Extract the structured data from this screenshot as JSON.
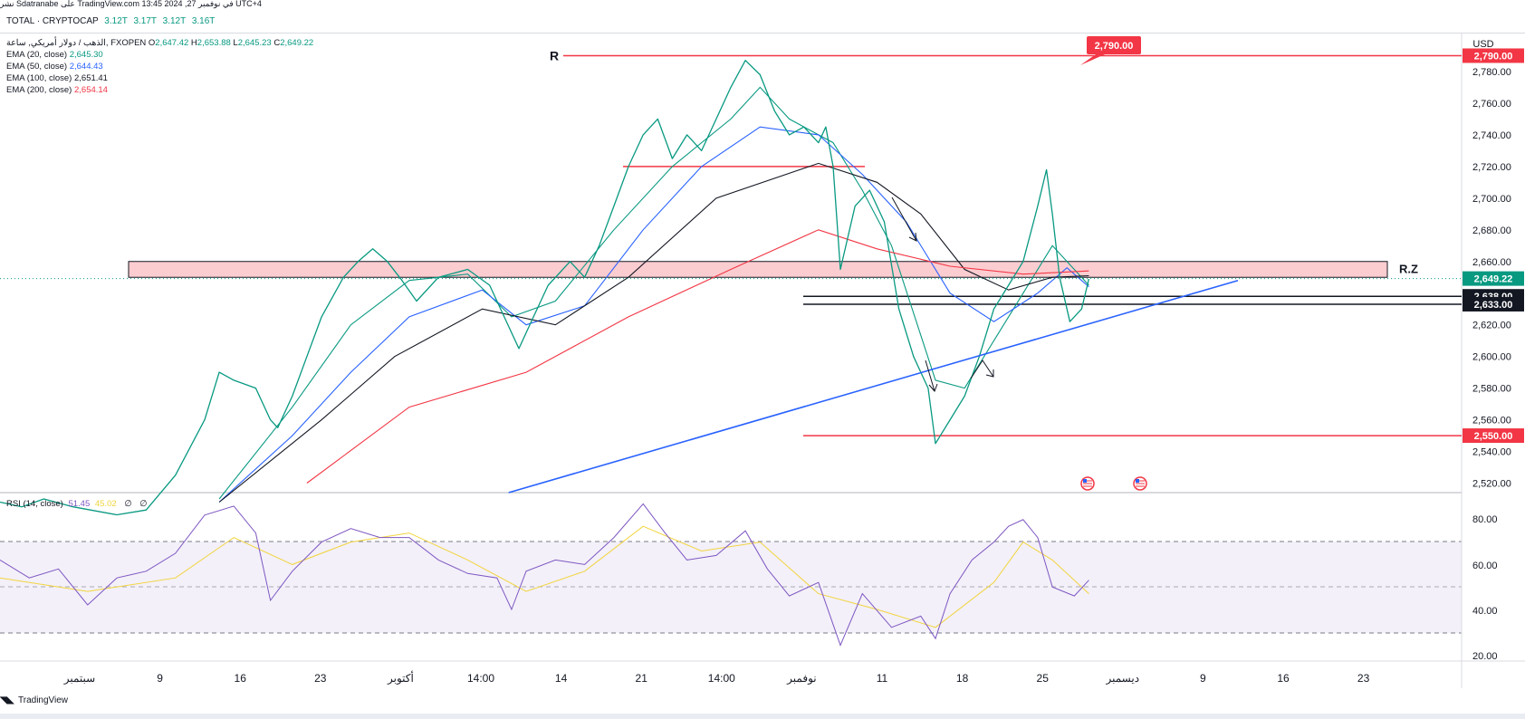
{
  "header": {
    "snapshot_line": "نشر Sdatranabe على TradingView.com 13:45 2024 ,27 في نوفمبر UTC+4",
    "ticker": {
      "name": "TOTAL · CRYPTOCAP",
      "values": [
        "3.12T",
        "3.17T",
        "3.12T",
        "3.16T"
      ]
    }
  },
  "legend": {
    "symbol": "الذهب / دولار أمريكي, ساعة, FXOPEN",
    "ohlc": {
      "O": "2,647.42",
      "H": "2,653.88",
      "L": "2,645.23",
      "C": "2,649.22"
    },
    "ema": [
      {
        "label": "EMA (20, close)",
        "value": "2,645.30",
        "color": "#089981"
      },
      {
        "label": "EMA (50, close)",
        "value": "2,644.43",
        "color": "#2962ff"
      },
      {
        "label": "EMA (100, close)",
        "value": "2,651.41",
        "color": "#131722"
      },
      {
        "label": "EMA (200, close)",
        "value": "2,654.14",
        "color": "#f23645"
      }
    ]
  },
  "rsi_legend": {
    "label": "RSI (14, close)",
    "value1": "51.45",
    "value2": "45.02",
    "value3": "∅",
    "value4": "∅"
  },
  "currency": "USD",
  "footer": {
    "brand": "TradingView"
  },
  "chart_data": {
    "type": "candlestick",
    "price_axis": {
      "ticks": [
        "2,780.00",
        "2,760.00",
        "2,740.00",
        "2,720.00",
        "2,700.00",
        "2,680.00",
        "2,660.00",
        "2,640.00",
        "2,620.00",
        "2,600.00",
        "2,580.00",
        "2,560.00",
        "2,540.00",
        "2,520.00"
      ],
      "range": [
        2514,
        2800
      ]
    },
    "time_axis": {
      "labels": [
        "سبتمبر",
        "9",
        "16",
        "23",
        "أكتوبر",
        "14:00",
        "14",
        "21",
        "14:00",
        "نوفمبر",
        "11",
        "18",
        "25",
        "ديسمبر",
        "9",
        "16",
        "23"
      ]
    },
    "price_path": [
      [
        0.0,
        2508
      ],
      [
        0.015,
        2505
      ],
      [
        0.03,
        2510
      ],
      [
        0.05,
        2505
      ],
      [
        0.08,
        2500
      ],
      [
        0.1,
        2503
      ],
      [
        0.12,
        2525
      ],
      [
        0.14,
        2560
      ],
      [
        0.15,
        2590
      ],
      [
        0.16,
        2585
      ],
      [
        0.175,
        2580
      ],
      [
        0.185,
        2560
      ],
      [
        0.19,
        2555
      ],
      [
        0.2,
        2575
      ],
      [
        0.21,
        2600
      ],
      [
        0.22,
        2625
      ],
      [
        0.235,
        2650
      ],
      [
        0.245,
        2660
      ],
      [
        0.255,
        2668
      ],
      [
        0.265,
        2660
      ],
      [
        0.275,
        2648
      ],
      [
        0.285,
        2635
      ],
      [
        0.3,
        2650
      ],
      [
        0.32,
        2655
      ],
      [
        0.335,
        2645
      ],
      [
        0.345,
        2625
      ],
      [
        0.355,
        2605
      ],
      [
        0.365,
        2625
      ],
      [
        0.375,
        2645
      ],
      [
        0.39,
        2660
      ],
      [
        0.4,
        2650
      ],
      [
        0.41,
        2670
      ],
      [
        0.42,
        2695
      ],
      [
        0.43,
        2720
      ],
      [
        0.44,
        2740
      ],
      [
        0.45,
        2750
      ],
      [
        0.46,
        2725
      ],
      [
        0.47,
        2740
      ],
      [
        0.48,
        2730
      ],
      [
        0.49,
        2750
      ],
      [
        0.5,
        2770
      ],
      [
        0.51,
        2787
      ],
      [
        0.52,
        2778
      ],
      [
        0.53,
        2755
      ],
      [
        0.54,
        2740
      ],
      [
        0.55,
        2745
      ],
      [
        0.56,
        2735
      ],
      [
        0.565,
        2745
      ],
      [
        0.57,
        2720
      ],
      [
        0.575,
        2655
      ],
      [
        0.585,
        2695
      ],
      [
        0.595,
        2705
      ],
      [
        0.605,
        2685
      ],
      [
        0.615,
        2630
      ],
      [
        0.625,
        2600
      ],
      [
        0.63,
        2590
      ],
      [
        0.635,
        2580
      ],
      [
        0.64,
        2545
      ],
      [
        0.65,
        2560
      ],
      [
        0.66,
        2575
      ],
      [
        0.67,
        2600
      ],
      [
        0.68,
        2630
      ],
      [
        0.69,
        2645
      ],
      [
        0.7,
        2660
      ],
      [
        0.71,
        2695
      ],
      [
        0.716,
        2718
      ],
      [
        0.72,
        2690
      ],
      [
        0.725,
        2650
      ],
      [
        0.732,
        2622
      ],
      [
        0.74,
        2630
      ],
      [
        0.745,
        2649
      ]
    ],
    "ema_series": [
      {
        "name": "EMA (20, close)",
        "color": "#089981",
        "points": [
          [
            0.15,
            2510
          ],
          [
            0.2,
            2568
          ],
          [
            0.24,
            2620
          ],
          [
            0.28,
            2648
          ],
          [
            0.32,
            2652
          ],
          [
            0.35,
            2625
          ],
          [
            0.38,
            2635
          ],
          [
            0.42,
            2680
          ],
          [
            0.46,
            2720
          ],
          [
            0.5,
            2750
          ],
          [
            0.52,
            2770
          ],
          [
            0.54,
            2750
          ],
          [
            0.57,
            2735
          ],
          [
            0.59,
            2705
          ],
          [
            0.61,
            2670
          ],
          [
            0.64,
            2585
          ],
          [
            0.66,
            2580
          ],
          [
            0.69,
            2625
          ],
          [
            0.72,
            2670
          ],
          [
            0.745,
            2645
          ]
        ]
      },
      {
        "name": "EMA (50, close)",
        "color": "#2962ff",
        "points": [
          [
            0.15,
            2508
          ],
          [
            0.2,
            2550
          ],
          [
            0.24,
            2590
          ],
          [
            0.28,
            2625
          ],
          [
            0.33,
            2642
          ],
          [
            0.36,
            2620
          ],
          [
            0.4,
            2632
          ],
          [
            0.44,
            2680
          ],
          [
            0.48,
            2720
          ],
          [
            0.52,
            2745
          ],
          [
            0.56,
            2740
          ],
          [
            0.59,
            2715
          ],
          [
            0.62,
            2685
          ],
          [
            0.65,
            2640
          ],
          [
            0.68,
            2622
          ],
          [
            0.71,
            2640
          ],
          [
            0.73,
            2656
          ],
          [
            0.745,
            2644
          ]
        ]
      },
      {
        "name": "EMA (100, close)",
        "color": "#131722",
        "points": [
          [
            0.15,
            2508
          ],
          [
            0.22,
            2560
          ],
          [
            0.27,
            2600
          ],
          [
            0.33,
            2630
          ],
          [
            0.38,
            2620
          ],
          [
            0.43,
            2650
          ],
          [
            0.49,
            2700
          ],
          [
            0.56,
            2722
          ],
          [
            0.6,
            2710
          ],
          [
            0.63,
            2690
          ],
          [
            0.66,
            2655
          ],
          [
            0.69,
            2642
          ],
          [
            0.72,
            2650
          ],
          [
            0.745,
            2651
          ]
        ]
      },
      {
        "name": "EMA (200, close)",
        "color": "#f23645",
        "points": [
          [
            0.21,
            2520
          ],
          [
            0.28,
            2568
          ],
          [
            0.36,
            2590
          ],
          [
            0.43,
            2625
          ],
          [
            0.5,
            2655
          ],
          [
            0.56,
            2680
          ],
          [
            0.6,
            2668
          ],
          [
            0.65,
            2657
          ],
          [
            0.7,
            2652
          ],
          [
            0.745,
            2654
          ]
        ]
      }
    ],
    "levels": [
      {
        "name": "R",
        "value": 2790,
        "label": "2,790.00",
        "color": "#f23645"
      },
      {
        "name": "",
        "value": 2720,
        "label": "",
        "color": "#f23645"
      },
      {
        "name": "",
        "value": 2638,
        "label": "2,638.00",
        "color": "#131722"
      },
      {
        "name": "",
        "value": 2633,
        "label": "2,633.00",
        "color": "#131722"
      },
      {
        "name": "",
        "value": 2550,
        "label": "2,550.00",
        "color": "#f23645"
      }
    ],
    "zone": {
      "name": "R.Z",
      "from": 2650,
      "to": 2660
    },
    "trendline": {
      "from": [
        0.348,
        2514
      ],
      "to": [
        0.847,
        2648
      ],
      "color": "#2962ff"
    },
    "callout": {
      "label": "2,790.00",
      "value": 2790
    },
    "last_price": {
      "value": 2649.22,
      "label": "2,649.22"
    },
    "rsi": {
      "ticks": [
        "80.00",
        "60.00",
        "40.00",
        "20.00"
      ],
      "range": [
        15,
        90
      ],
      "overbought": 70,
      "oversold": 30,
      "mid": 50,
      "points": [
        [
          0.0,
          60
        ],
        [
          0.02,
          52
        ],
        [
          0.04,
          56
        ],
        [
          0.06,
          40
        ],
        [
          0.08,
          52
        ],
        [
          0.1,
          55
        ],
        [
          0.12,
          63
        ],
        [
          0.14,
          80
        ],
        [
          0.16,
          84
        ],
        [
          0.175,
          72
        ],
        [
          0.185,
          42
        ],
        [
          0.2,
          55
        ],
        [
          0.22,
          68
        ],
        [
          0.24,
          74
        ],
        [
          0.26,
          70
        ],
        [
          0.28,
          70
        ],
        [
          0.3,
          60
        ],
        [
          0.32,
          54
        ],
        [
          0.34,
          52
        ],
        [
          0.35,
          38
        ],
        [
          0.36,
          55
        ],
        [
          0.38,
          60
        ],
        [
          0.4,
          58
        ],
        [
          0.42,
          70
        ],
        [
          0.44,
          85
        ],
        [
          0.455,
          72
        ],
        [
          0.47,
          60
        ],
        [
          0.49,
          62
        ],
        [
          0.51,
          73
        ],
        [
          0.525,
          56
        ],
        [
          0.54,
          44
        ],
        [
          0.56,
          50
        ],
        [
          0.575,
          22
        ],
        [
          0.59,
          45
        ],
        [
          0.61,
          30
        ],
        [
          0.63,
          35
        ],
        [
          0.64,
          25
        ],
        [
          0.65,
          45
        ],
        [
          0.665,
          60
        ],
        [
          0.68,
          68
        ],
        [
          0.69,
          75
        ],
        [
          0.7,
          78
        ],
        [
          0.71,
          70
        ],
        [
          0.72,
          48
        ],
        [
          0.735,
          44
        ],
        [
          0.745,
          51
        ]
      ],
      "ma_points": [
        [
          0.0,
          52
        ],
        [
          0.06,
          46
        ],
        [
          0.12,
          52
        ],
        [
          0.16,
          70
        ],
        [
          0.2,
          58
        ],
        [
          0.24,
          68
        ],
        [
          0.28,
          72
        ],
        [
          0.32,
          60
        ],
        [
          0.36,
          46
        ],
        [
          0.4,
          55
        ],
        [
          0.44,
          75
        ],
        [
          0.48,
          64
        ],
        [
          0.52,
          68
        ],
        [
          0.56,
          45
        ],
        [
          0.6,
          38
        ],
        [
          0.64,
          30
        ],
        [
          0.68,
          50
        ],
        [
          0.7,
          68
        ],
        [
          0.72,
          60
        ],
        [
          0.745,
          45
        ]
      ]
    }
  }
}
